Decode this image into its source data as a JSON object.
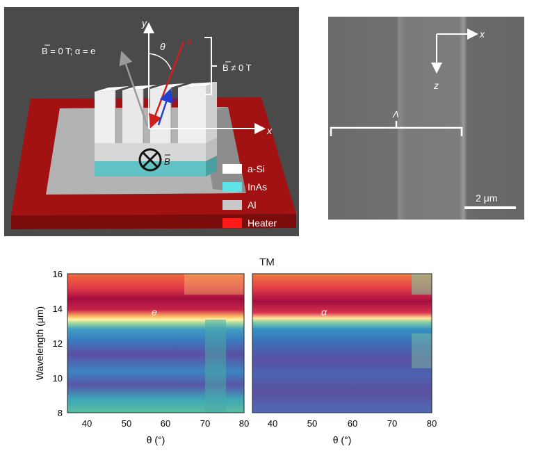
{
  "panel_a": {
    "axes": {
      "y": "y",
      "x": "x",
      "theta": "θ",
      "alpha": "α",
      "e": "e"
    },
    "label_b_zero": "B = 0 T; α = e",
    "label_b_nonzero": "B ≠ 0 T",
    "label_b_field": "B",
    "legend": [
      {
        "label": "a-Si",
        "color": "#ffffff"
      },
      {
        "label": "InAs",
        "color": "#5fe2e6"
      },
      {
        "label": "Al",
        "color": "#c8c8c8"
      },
      {
        "label": "Heater",
        "color": "#ff1a1a"
      }
    ],
    "colors": {
      "heater": "#b01414",
      "al": "#b9b9b9",
      "inas": "#6cc9c9",
      "asi": "#e6e6e6",
      "e_arrow": "#1f3fd0",
      "alpha_arrow": "#d01d1d",
      "b0_arrow": "#9a9a9a"
    }
  },
  "panel_b": {
    "axes": {
      "x": "x",
      "z": "z"
    },
    "period_label": "Λ",
    "scale_bar": "2 μm"
  },
  "panel_c": {
    "title": "TM",
    "ylabel": "Wavelength (μm)",
    "xlabel": "θ (°)",
    "y_ticks": [
      "8",
      "10",
      "12",
      "14",
      "16"
    ],
    "x_ticks": [
      "40",
      "50",
      "60",
      "70",
      "80"
    ],
    "left_label": "e",
    "right_label": "α"
  },
  "chart_data": {
    "type": "heatmap",
    "title": "TM",
    "xlabel": "θ (°)",
    "ylabel": "Wavelength (μm)",
    "xlim": [
      35,
      80
    ],
    "ylim": [
      8,
      16
    ],
    "x": [
      35,
      40,
      45,
      50,
      55,
      60,
      65,
      70,
      75,
      80
    ],
    "panels": [
      {
        "name": "e",
        "resonance_wavelengths": [
          12.9,
          12.9,
          12.9,
          12.9,
          12.9,
          12.9,
          12.9,
          12.85,
          12.85
        ]
      },
      {
        "name": "α",
        "resonance_wavelengths": [
          12.6,
          12.65,
          12.7,
          12.75,
          12.8,
          12.8,
          12.85,
          12.85,
          12.9
        ]
      }
    ]
  }
}
